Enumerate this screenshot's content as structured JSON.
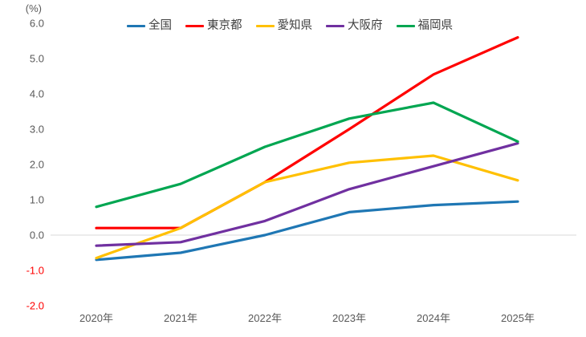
{
  "unit_label": "(%)",
  "colors": {
    "background": "#FFFFFF",
    "axis_text": "#595959",
    "negative_tick_text": "#FF0000",
    "zero_line": "#D9D9D9",
    "legend_text": "#404040"
  },
  "chart_data": {
    "type": "line",
    "title": "",
    "xlabel": "",
    "ylabel": "(%)",
    "categories": [
      "2020年",
      "2021年",
      "2022年",
      "2023年",
      "2024年",
      "2025年"
    ],
    "ylim": [
      -2.0,
      6.0
    ],
    "ytick_step": 1.0,
    "yticks": [
      "6.0",
      "5.0",
      "4.0",
      "3.0",
      "2.0",
      "1.0",
      "0.0",
      "-1.0",
      "-2.0"
    ],
    "grid": false,
    "legend_position": "top",
    "series": [
      {
        "name": "全国",
        "color": "#1F77B4",
        "values": [
          -0.7,
          -0.5,
          0.0,
          0.65,
          0.85,
          0.95
        ]
      },
      {
        "name": "東京都",
        "color": "#FF0000",
        "values": [
          0.2,
          0.2,
          1.5,
          3.0,
          4.55,
          5.6
        ]
      },
      {
        "name": "愛知県",
        "color": "#FFC000",
        "values": [
          -0.65,
          0.2,
          1.5,
          2.05,
          2.25,
          1.55
        ]
      },
      {
        "name": "大阪府",
        "color": "#7030A0",
        "values": [
          -0.3,
          -0.2,
          0.4,
          1.3,
          1.95,
          2.6
        ]
      },
      {
        "name": "福岡県",
        "color": "#00A651",
        "values": [
          0.8,
          1.45,
          2.5,
          3.3,
          3.75,
          2.65
        ]
      }
    ]
  }
}
